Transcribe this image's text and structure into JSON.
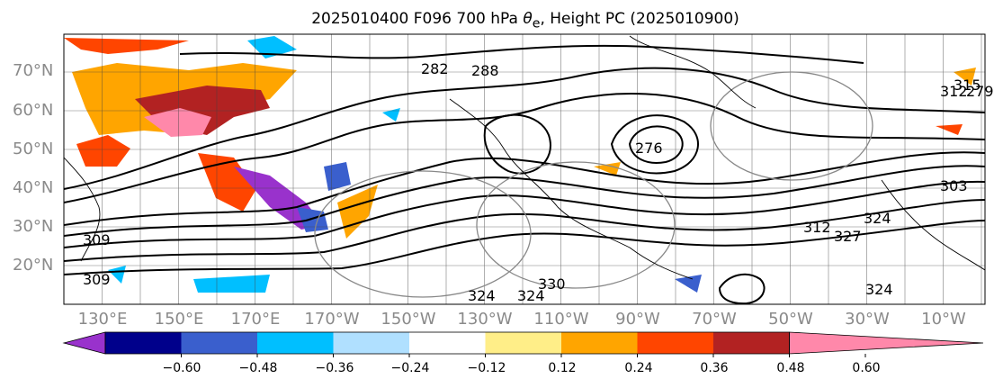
{
  "title_prefix": "2025010400 F096 700 hPa ",
  "title_theta": "θ",
  "title_sub": "e",
  "title_suffix": ", Height PC (2025010900)",
  "map": {
    "extent": {
      "lon_min": 120,
      "lon_max": 355,
      "lat_min": 10,
      "lat_max": 80
    },
    "lat_labels": [
      "70°N",
      "60°N",
      "50°N",
      "40°N",
      "30°N",
      "20°N"
    ],
    "lon_labels": [
      "130°E",
      "150°E",
      "170°E",
      "170°W",
      "150°W",
      "130°W",
      "110°W",
      "90°W",
      "70°W",
      "50°W",
      "30°W",
      "10°W"
    ],
    "contour_labels": [
      "282",
      "288",
      "276",
      "312",
      "309",
      "309",
      "324",
      "324",
      "330",
      "324",
      "324",
      "327",
      "312",
      "315",
      "279",
      "303"
    ]
  },
  "colorbar": {
    "ticks": [
      "−0.60",
      "−0.48",
      "−0.36",
      "−0.24",
      "−0.12",
      "0.12",
      "0.24",
      "0.36",
      "0.48",
      "0.60"
    ],
    "colors": [
      "#9932cc",
      "#00008b",
      "#3a5fcd",
      "#00bfff",
      "#b0e0ff",
      "#ffffff",
      "#ffee88",
      "#ffa500",
      "#ff4500",
      "#b22222",
      "#ff88aa"
    ]
  },
  "colors": {
    "axis_label": "#8a8a8a",
    "contour": "#000000",
    "grid": "#444444"
  }
}
